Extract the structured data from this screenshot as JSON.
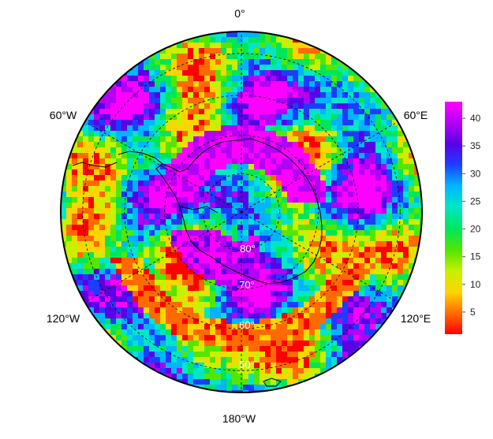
{
  "map": {
    "projection": "south-polar-stereographic",
    "longitude_labels": {
      "top": "0°",
      "upper_left": "60°W",
      "upper_right": "60°E",
      "lower_left": "120°W",
      "lower_right": "120°E",
      "bottom": "180°W"
    },
    "latitude_labels": [
      "80°",
      "70°",
      "60°",
      "50°"
    ],
    "latitude_circles": [
      80,
      70,
      60,
      50
    ],
    "meridians_deg": [
      0,
      60,
      120,
      180,
      240,
      300
    ],
    "outer_latitude": 45,
    "continent": "Antarctica",
    "gridlines": "dashed black"
  },
  "colorbar": {
    "ticks": [
      "5",
      "10",
      "15",
      "20",
      "25",
      "30",
      "35",
      "40"
    ],
    "range": [
      1,
      43
    ],
    "palette": [
      "#ff0000",
      "#ff6a00",
      "#ffd400",
      "#c8f000",
      "#55e600",
      "#00e65a",
      "#00e6c8",
      "#00b4ff",
      "#1e3cff",
      "#5a00e6",
      "#b400f5",
      "#ff00ff"
    ]
  }
}
